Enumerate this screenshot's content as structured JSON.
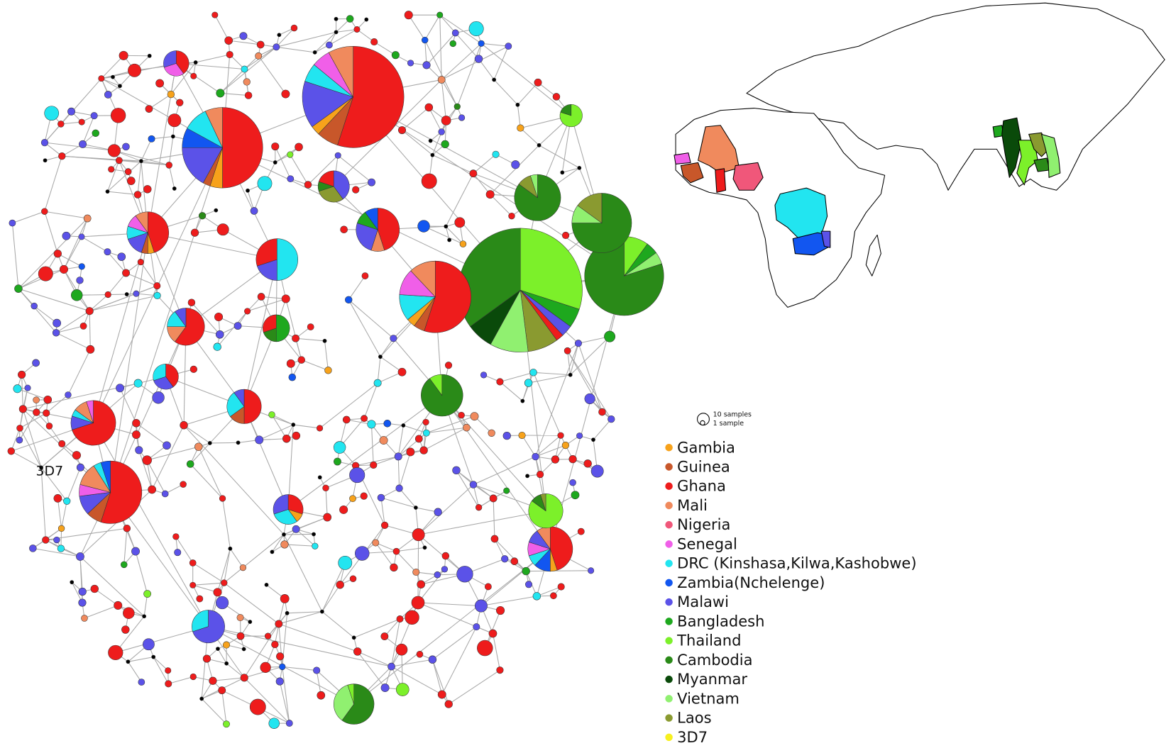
{
  "reference_label": "3D7",
  "size_legend": [
    "10 samples",
    "1 sample"
  ],
  "legend": [
    {
      "name": "Gambia",
      "color": "#f7a21b"
    },
    {
      "name": "Guinea",
      "color": "#c8572a"
    },
    {
      "name": "Ghana",
      "color": "#ee1c1c"
    },
    {
      "name": "Mali",
      "color": "#f08a5d"
    },
    {
      "name": "Nigeria",
      "color": "#f0577a"
    },
    {
      "name": "Senegal",
      "color": "#f05fe8"
    },
    {
      "name": "DRC (Kinshasa,Kilwa,Kashobwe)",
      "color": "#22e5f0"
    },
    {
      "name": "Zambia(Nchelenge)",
      "color": "#1256f0"
    },
    {
      "name": "Malawi",
      "color": "#5b52e8"
    },
    {
      "name": "Bangladesh",
      "color": "#1ea81e"
    },
    {
      "name": "Thailand",
      "color": "#7cf02a"
    },
    {
      "name": "Cambodia",
      "color": "#2a8a18"
    },
    {
      "name": "Myanmar",
      "color": "#0a4a0a"
    },
    {
      "name": "Vietnam",
      "color": "#90f070"
    },
    {
      "name": "Laos",
      "color": "#8a9a30"
    },
    {
      "name": "3D7",
      "color": "#f7f020"
    }
  ]
}
